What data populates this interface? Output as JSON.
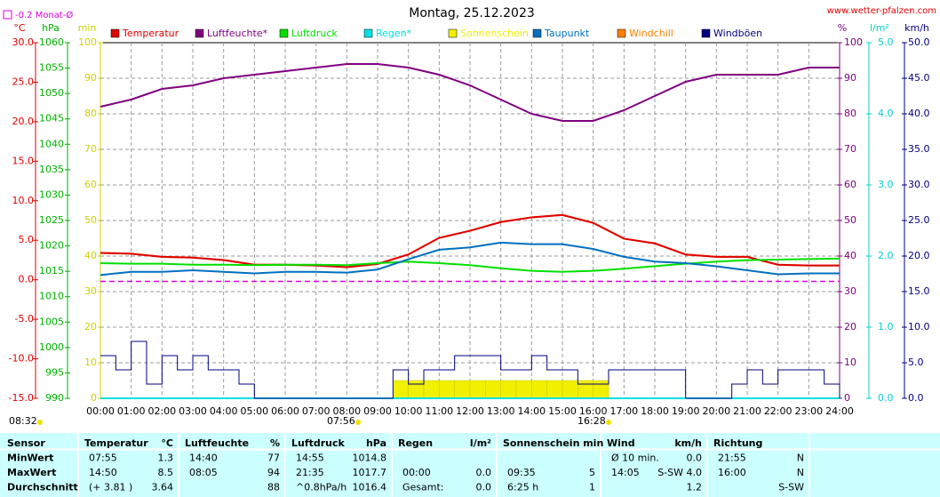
{
  "chart_data": {
    "type": "line",
    "title": "Montag, 25.12.2023",
    "source": "www.wetter-pfalzen.com",
    "monthly_avg": {
      "label": "-0.2 Monat-Ø",
      "value": -0.2,
      "color": "#e000e0"
    },
    "axes": [
      {
        "label": "°C",
        "color": "#e00000",
        "lim": [
          -15,
          30
        ],
        "ticks": [
          {
            "value": 30,
            "label": "30.0"
          },
          {
            "value": 25,
            "label": "25.0"
          },
          {
            "value": 20,
            "label": "20.0"
          },
          {
            "value": 15,
            "label": "15.0"
          },
          {
            "value": 10,
            "label": "10.0"
          },
          {
            "value": 5,
            "label": "5.0"
          },
          {
            "value": 0,
            "label": "0.0"
          },
          {
            "value": -5,
            "label": "-5.0"
          },
          {
            "value": -10,
            "label": "-10.0"
          },
          {
            "value": -15,
            "label": "-15.0"
          }
        ]
      },
      {
        "label": "hPa",
        "color": "#00b000",
        "lim": [
          990,
          1060
        ],
        "ticks": [
          1060,
          1055,
          1050,
          1045,
          1040,
          1035,
          1030,
          1025,
          1020,
          1015,
          1010,
          1005,
          1000,
          995,
          990
        ]
      },
      {
        "label": "min",
        "color": "#d0d000",
        "lim": [
          0,
          100
        ],
        "ticks": [
          100,
          90,
          80,
          70,
          60,
          50,
          40,
          30,
          20,
          10,
          0
        ]
      },
      {
        "label": "%",
        "color": "#800080",
        "lim": [
          0,
          100
        ],
        "ticks": [
          100,
          90,
          80,
          70,
          60,
          50,
          40,
          30,
          20,
          10,
          0
        ]
      },
      {
        "label": "l/m²",
        "color": "#00d0d0",
        "lim": [
          0,
          5
        ],
        "ticks": [
          {
            "value": 5,
            "label": "5.0"
          },
          {
            "value": 4,
            "label": "4.0"
          },
          {
            "value": 3,
            "label": "3.0"
          },
          {
            "value": 2,
            "label": "2.0"
          },
          {
            "value": 1,
            "label": "1.0"
          },
          {
            "value": 0,
            "label": "0.0"
          }
        ]
      },
      {
        "label": "km/h",
        "color": "#000080",
        "lim": [
          0,
          50
        ],
        "ticks": [
          {
            "value": 50,
            "label": "50.0"
          },
          {
            "value": 45,
            "label": "45.0"
          },
          {
            "value": 40,
            "label": "40.0"
          },
          {
            "value": 35,
            "label": "35.0"
          },
          {
            "value": 30,
            "label": "30.0"
          },
          {
            "value": 25,
            "label": "25.0"
          },
          {
            "value": 20,
            "label": "20.0"
          },
          {
            "value": 15,
            "label": "15.0"
          },
          {
            "value": 10,
            "label": "10.0"
          },
          {
            "value": 5,
            "label": "5.0"
          },
          {
            "value": 0,
            "label": "0.0"
          }
        ]
      }
    ],
    "xlim": [
      0,
      24
    ],
    "xticks": [
      {
        "value": 0,
        "label": "00:00"
      },
      {
        "value": 1,
        "label": "01:00"
      },
      {
        "value": 2,
        "label": "02:00"
      },
      {
        "value": 3,
        "label": "03:00"
      },
      {
        "value": 4,
        "label": "04:00"
      },
      {
        "value": 5,
        "label": "05:00"
      },
      {
        "value": 6,
        "label": "06:00"
      },
      {
        "value": 7,
        "label": "07:00"
      },
      {
        "value": 8,
        "label": "08:00"
      },
      {
        "value": 9,
        "label": "09:00"
      },
      {
        "value": 10,
        "label": "10:00"
      },
      {
        "value": 11,
        "label": "11:00"
      },
      {
        "value": 12,
        "label": "12:00"
      },
      {
        "value": 13,
        "label": "13:00"
      },
      {
        "value": 14,
        "label": "14:00"
      },
      {
        "value": 15,
        "label": "15:00"
      },
      {
        "value": 16,
        "label": "16:00"
      },
      {
        "value": 17,
        "label": "17:00"
      },
      {
        "value": 18,
        "label": "18:00"
      },
      {
        "value": 19,
        "label": "19:00"
      },
      {
        "value": 20,
        "label": "20:00"
      },
      {
        "value": 21,
        "label": "21:00"
      },
      {
        "value": 22,
        "label": "22:00"
      },
      {
        "value": 23,
        "label": "23:00"
      },
      {
        "value": 24,
        "label": "24:00"
      }
    ],
    "x": [
      0,
      1,
      2,
      3,
      4,
      5,
      6,
      7,
      8,
      9,
      10,
      11,
      12,
      13,
      14,
      15,
      16,
      17,
      18,
      19,
      20,
      21,
      22,
      23,
      24
    ],
    "series": [
      {
        "name": "Temperatur",
        "color": "#e00000",
        "axis": "°C",
        "kind": "line",
        "values": [
          3.4,
          3.3,
          2.9,
          2.8,
          2.5,
          1.9,
          1.9,
          1.8,
          1.6,
          2.0,
          3.2,
          5.3,
          6.2,
          7.3,
          7.9,
          8.2,
          7.2,
          5.2,
          4.6,
          3.2,
          2.9,
          2.9,
          1.9,
          1.8,
          1.8
        ]
      },
      {
        "name": "Luftfeuchte*",
        "color": "#800080",
        "axis": "%",
        "kind": "line",
        "values": [
          82,
          84,
          87,
          88,
          90,
          91,
          92,
          93,
          94,
          94,
          93,
          91,
          88,
          84,
          80,
          78,
          78,
          81,
          85,
          89,
          91,
          91,
          91,
          93,
          93
        ]
      },
      {
        "name": "Luftdruck",
        "color": "#00e000",
        "axis": "hPa",
        "kind": "line",
        "values": [
          1016.6,
          1016.5,
          1016.5,
          1016.3,
          1016.3,
          1016.2,
          1016.3,
          1016.3,
          1016.2,
          1016.6,
          1016.9,
          1016.6,
          1016.2,
          1015.6,
          1015.1,
          1014.9,
          1015.1,
          1015.5,
          1016.0,
          1016.5,
          1016.9,
          1017.2,
          1017.3,
          1017.4,
          1017.5
        ]
      },
      {
        "name": "Regen*",
        "color": "#00e0e0",
        "axis": "l/m²",
        "kind": "line",
        "values": [
          0,
          0,
          0,
          0,
          0,
          0,
          0,
          0,
          0,
          0,
          0,
          0,
          0,
          0,
          0,
          0,
          0,
          0,
          0,
          0,
          0,
          0,
          0,
          0,
          0
        ]
      },
      {
        "name": "Sonnenschein",
        "color": "#f0f000",
        "axis": "min",
        "kind": "bar",
        "x": [
          9.5,
          10,
          10.5,
          11,
          11.5,
          12,
          12.5,
          13,
          13.5,
          14,
          14.5,
          15,
          15.5,
          16
        ],
        "values": [
          5,
          5,
          5,
          5,
          5,
          5,
          5,
          5,
          5,
          5,
          5,
          5,
          5,
          5
        ]
      },
      {
        "name": "Taupunkt",
        "color": "#0070c0",
        "axis": "°C",
        "kind": "line",
        "values": [
          0.6,
          1.0,
          1.0,
          1.2,
          1.0,
          0.8,
          1.0,
          1.0,
          0.9,
          1.3,
          2.6,
          3.8,
          4.1,
          4.7,
          4.5,
          4.5,
          3.9,
          2.9,
          2.3,
          2.1,
          1.7,
          1.2,
          0.7,
          0.8,
          0.8
        ]
      },
      {
        "name": "Windchill",
        "color": "#ff8000",
        "axis": "°C",
        "kind": "line",
        "values": [
          3.4,
          3.3,
          2.9,
          2.8,
          2.5,
          1.9,
          1.9,
          1.8,
          1.6,
          2.0,
          3.2,
          5.3,
          6.2,
          7.3,
          7.9,
          8.2,
          7.2,
          5.2,
          4.6,
          3.2,
          2.9,
          2.9,
          1.9,
          1.8,
          1.8
        ]
      },
      {
        "name": "Windböen",
        "color": "#000080",
        "axis": "km/h",
        "kind": "step",
        "x": [
          0,
          0.5,
          1,
          1.5,
          2,
          2.5,
          3,
          3.5,
          4,
          4.5,
          5,
          5.5,
          6,
          6.5,
          7,
          7.5,
          8,
          8.5,
          9,
          9.5,
          10,
          10.5,
          11,
          11.5,
          12,
          12.5,
          13,
          13.5,
          14,
          14.5,
          15,
          15.5,
          16,
          16.5,
          17,
          17.5,
          18,
          18.5,
          19,
          19.5,
          20,
          20.5,
          21,
          21.5,
          22,
          22.5,
          23,
          23.5,
          24
        ],
        "values": [
          6,
          4,
          8,
          2,
          6,
          4,
          6,
          4,
          4,
          2,
          0,
          0,
          0,
          0,
          0,
          0,
          0,
          0,
          0,
          4,
          2,
          4,
          4,
          6,
          6,
          6,
          4,
          4,
          6,
          4,
          4,
          2,
          2,
          4,
          4,
          4,
          4,
          4,
          0,
          0,
          0,
          2,
          4,
          2,
          4,
          4,
          4,
          2,
          0
        ]
      }
    ],
    "annotations": [
      "08:32",
      "07:56",
      "16:28"
    ]
  },
  "table": {
    "header": [
      {
        "name": "Sensor"
      },
      {
        "name": "Temperatur",
        "unit": "°C"
      },
      {
        "name": "Luftfeuchte",
        "unit": "%"
      },
      {
        "name": "Luftdruck",
        "unit": "hPa"
      },
      {
        "name": "Regen",
        "unit": "l/m²"
      },
      {
        "name": "Sonnenschein min"
      },
      {
        "name": "Wind",
        "unit": "km/h"
      },
      {
        "name": "Richtung"
      }
    ],
    "rows": [
      {
        "label": "MinWert",
        "cells": [
          {
            "l": "07:55",
            "r": "1.3"
          },
          {
            "l": "14:40",
            "r": "77"
          },
          {
            "l": "14:55",
            "r": "1014.8"
          },
          {},
          {},
          {
            "l": "Ø 10 min.",
            "r": "0.0"
          },
          {
            "l": "21:55",
            "r": "N"
          }
        ]
      },
      {
        "label": "MaxWert",
        "cells": [
          {
            "l": "14:50",
            "r": "8.5"
          },
          {
            "l": "08:05",
            "r": "94"
          },
          {
            "l": "21:35",
            "r": "1017.7"
          },
          {
            "l": "00:00",
            "r": "0.0"
          },
          {
            "l": "09:35",
            "r": "5"
          },
          {
            "l": "14:05",
            "r": "S-SW 4.0"
          },
          {
            "l": "16:00",
            "r": "N"
          }
        ]
      },
      {
        "label": "Durchschnitt",
        "cells": [
          {
            "l": "(+ 3.81 )",
            "r": "3.64"
          },
          {
            "r": "88"
          },
          {
            "l": "^0.8hPa/h",
            "r": "1016.4"
          },
          {
            "l": "Gesamt:",
            "r": "0.0"
          },
          {
            "l": "6:25 h",
            "r": "1"
          },
          {
            "r": "1.2"
          },
          {
            "r": "S-SW"
          }
        ]
      }
    ]
  }
}
